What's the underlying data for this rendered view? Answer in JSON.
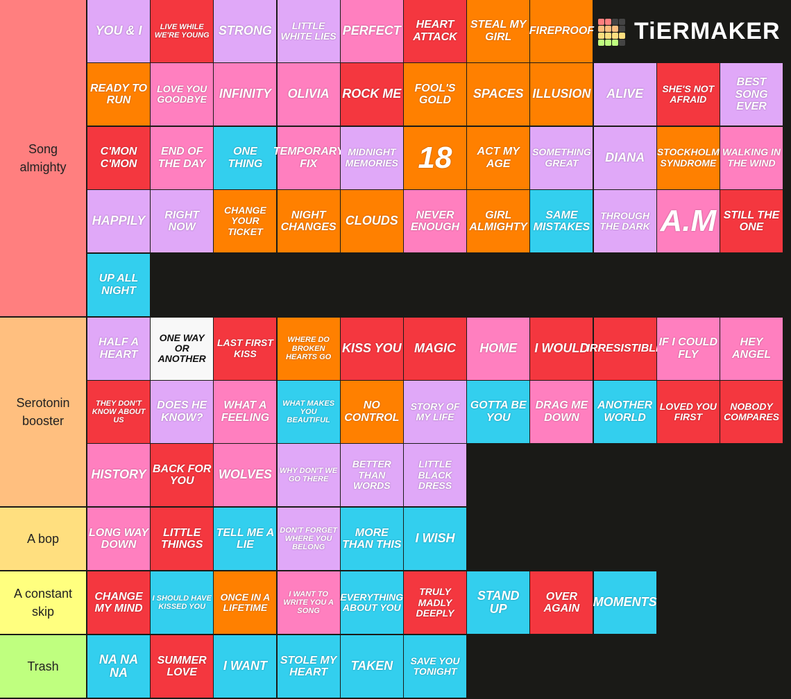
{
  "logo": {
    "text": "TiERMAKER"
  },
  "tiers": [
    {
      "label": "Song almighty",
      "color": "#ff7f7f",
      "items": [
        {
          "label": "YOU & I",
          "color": "#e0a8f8"
        },
        {
          "label": "LIVE WHILE WE'RE YOUNG",
          "color": "#f4373f"
        },
        {
          "label": "STRONG",
          "color": "#e0a8f8"
        },
        {
          "label": "LITTLE WHITE LIES",
          "color": "#e0a8f8"
        },
        {
          "label": "PERFECT",
          "color": "#ff7fbf"
        },
        {
          "label": "HEART ATTACK",
          "color": "#f4373f"
        },
        {
          "label": "STEAL MY GIRL",
          "color": "#ff8000"
        },
        {
          "label": "FIREPROOF",
          "color": "#ff8000"
        },
        {
          "label": "READY TO RUN",
          "color": "#ff8000"
        },
        {
          "label": "LOVE YOU GOODBYE",
          "color": "#ff7fbf"
        },
        {
          "label": "INFINITY",
          "color": "#ff7fbf"
        },
        {
          "label": "OLIVIA",
          "color": "#ff7fbf"
        },
        {
          "label": "ROCK ME",
          "color": "#f4373f"
        },
        {
          "label": "FOOL'S GOLD",
          "color": "#ff8000"
        },
        {
          "label": "SPACES",
          "color": "#ff8000"
        },
        {
          "label": "ILLUSION",
          "color": "#ff8000"
        },
        {
          "label": "ALIVE",
          "color": "#e0a8f8"
        },
        {
          "label": "SHE'S NOT AFRAID",
          "color": "#f4373f"
        },
        {
          "label": "BEST SONG EVER",
          "color": "#e0a8f8"
        },
        {
          "label": "C'MON C'MON",
          "color": "#f4373f"
        },
        {
          "label": "END OF THE DAY",
          "color": "#ff7fbf"
        },
        {
          "label": "ONE THING",
          "color": "#33cfee"
        },
        {
          "label": "TEMPORARY FIX",
          "color": "#ff7fbf"
        },
        {
          "label": "MIDNIGHT MEMORIES",
          "color": "#e0a8f8"
        },
        {
          "label": "18",
          "color": "#ff8000"
        },
        {
          "label": "ACT MY AGE",
          "color": "#ff8000"
        },
        {
          "label": "SOMETHING GREAT",
          "color": "#e0a8f8"
        },
        {
          "label": "DIANA",
          "color": "#e0a8f8"
        },
        {
          "label": "STOCKHOLM SYNDROME",
          "color": "#ff8000"
        },
        {
          "label": "WALKING IN THE WIND",
          "color": "#ff7fbf"
        },
        {
          "label": "HAPPILY",
          "color": "#e0a8f8"
        },
        {
          "label": "RIGHT NOW",
          "color": "#e0a8f8"
        },
        {
          "label": "CHANGE YOUR TICKET",
          "color": "#ff8000"
        },
        {
          "label": "NIGHT CHANGES",
          "color": "#ff8000"
        },
        {
          "label": "CLOUDS",
          "color": "#ff8000"
        },
        {
          "label": "NEVER ENOUGH",
          "color": "#ff7fbf"
        },
        {
          "label": "GIRL ALMIGHTY",
          "color": "#ff8000"
        },
        {
          "label": "SAME MISTAKES",
          "color": "#33cfee"
        },
        {
          "label": "THROUGH THE DARK",
          "color": "#e0a8f8"
        },
        {
          "label": "A.M",
          "color": "#ff7fbf"
        },
        {
          "label": "STILL THE ONE",
          "color": "#f4373f"
        },
        {
          "label": "UP ALL NIGHT",
          "color": "#33cfee"
        }
      ]
    },
    {
      "label": "Serotonin booster",
      "color": "#ffbf7f",
      "items": [
        {
          "label": "HALF A HEART",
          "color": "#e0a8f8"
        },
        {
          "label": "ONE WAY OR ANOTHER",
          "color": "#f8f8f8"
        },
        {
          "label": "LAST FIRST KISS",
          "color": "#f4373f"
        },
        {
          "label": "WHERE DO BROKEN HEARTS GO",
          "color": "#ff8000"
        },
        {
          "label": "KISS YOU",
          "color": "#f4373f"
        },
        {
          "label": "MAGIC",
          "color": "#f4373f"
        },
        {
          "label": "HOME",
          "color": "#ff7fbf"
        },
        {
          "label": "I WOULD",
          "color": "#f4373f"
        },
        {
          "label": "IRRESISTIBLE",
          "color": "#f4373f"
        },
        {
          "label": "IF I COULD FLY",
          "color": "#ff7fbf"
        },
        {
          "label": "HEY ANGEL",
          "color": "#ff7fbf"
        },
        {
          "label": "THEY DON'T KNOW ABOUT US",
          "color": "#f4373f"
        },
        {
          "label": "DOES HE KNOW?",
          "color": "#e0a8f8"
        },
        {
          "label": "WHAT A FEELING",
          "color": "#ff7fbf"
        },
        {
          "label": "WHAT MAKES YOU BEAUTIFUL",
          "color": "#33cfee"
        },
        {
          "label": "NO CONTROL",
          "color": "#ff8000"
        },
        {
          "label": "STORY OF MY LIFE",
          "color": "#e0a8f8"
        },
        {
          "label": "GOTTA BE YOU",
          "color": "#33cfee"
        },
        {
          "label": "DRAG ME DOWN",
          "color": "#ff7fbf"
        },
        {
          "label": "ANOTHER WORLD",
          "color": "#33cfee"
        },
        {
          "label": "LOVED YOU FIRST",
          "color": "#f4373f"
        },
        {
          "label": "NOBODY COMPARES",
          "color": "#f4373f"
        },
        {
          "label": "HISTORY",
          "color": "#ff7fbf"
        },
        {
          "label": "BACK FOR YOU",
          "color": "#f4373f"
        },
        {
          "label": "WOLVES",
          "color": "#ff7fbf"
        },
        {
          "label": "WHY DON'T WE GO THERE",
          "color": "#e0a8f8"
        },
        {
          "label": "BETTER THAN WORDS",
          "color": "#e0a8f8"
        },
        {
          "label": "LITTLE BLACK DRESS",
          "color": "#e0a8f8"
        }
      ]
    },
    {
      "label": "A bop",
      "color": "#ffdf7f",
      "items": [
        {
          "label": "LONG WAY DOWN",
          "color": "#ff7fbf"
        },
        {
          "label": "LITTLE THINGS",
          "color": "#f4373f"
        },
        {
          "label": "TELL ME A LIE",
          "color": "#33cfee"
        },
        {
          "label": "DON'T FORGET WHERE YOU BELONG",
          "color": "#e0a8f8"
        },
        {
          "label": "MORE THAN THIS",
          "color": "#33cfee"
        },
        {
          "label": "I WISH",
          "color": "#33cfee"
        }
      ]
    },
    {
      "label": "A constant skip",
      "color": "#ffff7f",
      "items": [
        {
          "label": "CHANGE MY MIND",
          "color": "#f4373f"
        },
        {
          "label": "I SHOULD HAVE KISSED YOU",
          "color": "#33cfee"
        },
        {
          "label": "ONCE IN A LIFETIME",
          "color": "#ff8000"
        },
        {
          "label": "I WANT TO WRITE YOU A SONG",
          "color": "#ff7fbf"
        },
        {
          "label": "EVERYTHING ABOUT YOU",
          "color": "#33cfee"
        },
        {
          "label": "TRULY MADLY DEEPLY",
          "color": "#f4373f"
        },
        {
          "label": "STAND UP",
          "color": "#33cfee"
        },
        {
          "label": "OVER AGAIN",
          "color": "#f4373f"
        },
        {
          "label": "MOMENTS",
          "color": "#33cfee"
        }
      ]
    },
    {
      "label": "Trash",
      "color": "#bfff7f",
      "items": [
        {
          "label": "NA NA NA",
          "color": "#33cfee"
        },
        {
          "label": "SUMMER LOVE",
          "color": "#f4373f"
        },
        {
          "label": "I WANT",
          "color": "#33cfee"
        },
        {
          "label": "STOLE MY HEART",
          "color": "#33cfee"
        },
        {
          "label": "TAKEN",
          "color": "#33cfee"
        },
        {
          "label": "SAVE YOU TONIGHT",
          "color": "#33cfee"
        }
      ]
    }
  ]
}
